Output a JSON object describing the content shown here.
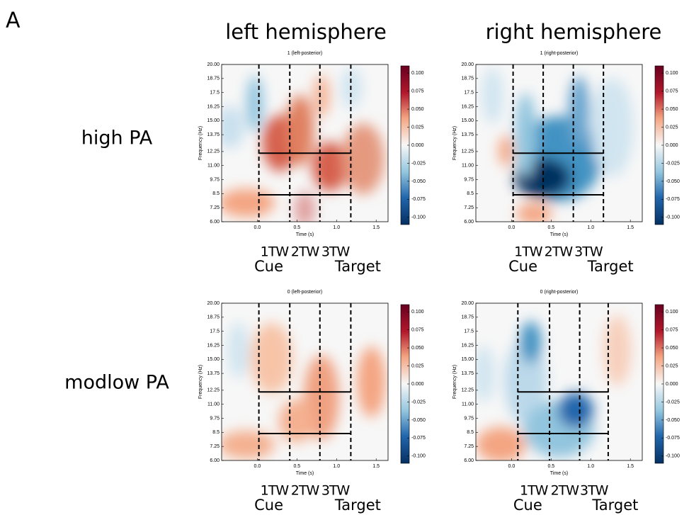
{
  "panel_label": "A",
  "column_titles": [
    "left hemisphere",
    "right hemisphere"
  ],
  "row_titles": [
    "high PA",
    "modlow PA"
  ],
  "axes": {
    "x_label": "Time (s)",
    "y_label": "Frequency (Hz)",
    "xlim": [
      -0.45,
      1.65
    ],
    "ylim": [
      6,
      20
    ],
    "clim": [
      -0.11,
      0.11
    ],
    "xticks": [
      {
        "value": 0,
        "label": "0.0"
      },
      0.5,
      {
        "value": 1,
        "label": "1.0"
      },
      1.5
    ],
    "yticks": [
      {
        "value": 20,
        "label": "20.00"
      },
      18.75,
      17.5,
      16.25,
      {
        "value": 15,
        "label": "15.00"
      },
      13.75,
      12.25,
      {
        "value": 11,
        "label": "11.00"
      },
      9.75,
      8.5,
      7.25,
      {
        "value": 6,
        "label": "6.00"
      }
    ],
    "cticks": [
      {
        "value": 0.1,
        "label": "0.100"
      },
      0.075,
      {
        "value": 0.05,
        "label": "0.050"
      },
      0.025,
      {
        "value": 0,
        "label": "0.000"
      },
      -0.025,
      {
        "value": -0.05,
        "label": "-0.050"
      },
      -0.075,
      {
        "value": -0.1,
        "label": "-0.100"
      }
    ]
  },
  "window_labels": [
    "1TW",
    "2TW",
    "3TW"
  ],
  "event_labels": [
    "Cue",
    "Target"
  ],
  "plots": [
    {
      "title": "1 (left-posterior)",
      "vlines": [
        0.02,
        0.41,
        0.79,
        1.18
      ],
      "box_freq": [
        8.4,
        12.1
      ]
    },
    {
      "title": "1 (right-posterior)",
      "vlines": [
        0.02,
        0.4,
        0.78,
        1.16
      ],
      "box_freq": [
        8.4,
        12.1
      ]
    },
    {
      "title": "0 (left-posterior)",
      "vlines": [
        0.02,
        0.41,
        0.79,
        1.18
      ],
      "box_freq": [
        8.4,
        12.1
      ]
    },
    {
      "title": "0 (right-posterior)",
      "vlines": [
        0.08,
        0.48,
        0.86,
        1.22
      ],
      "box_freq": [
        8.4,
        12.1
      ]
    }
  ]
}
